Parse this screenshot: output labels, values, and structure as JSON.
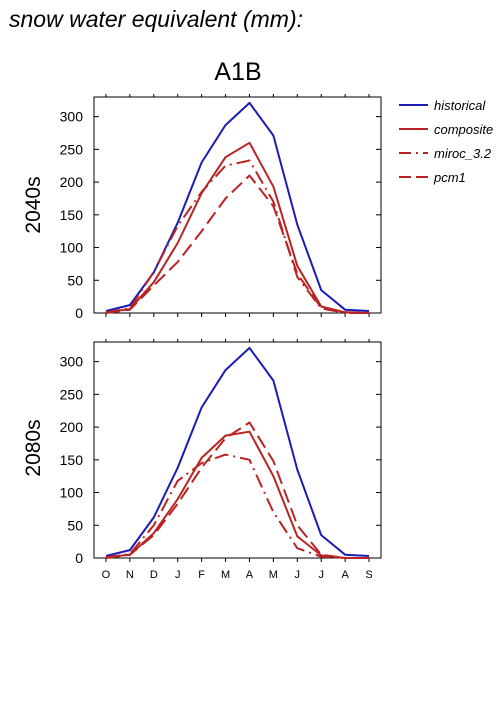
{
  "figure": {
    "title": "snow water equivalent (mm):",
    "scenario": "A1B"
  },
  "colors": {
    "historical": "#1c1cb4",
    "scenario": "#bb2222",
    "axis": "#000000"
  },
  "chart_data": [
    {
      "type": "line",
      "panel_label": "2040s",
      "categories": [
        "O",
        "N",
        "D",
        "J",
        "F",
        "M",
        "A",
        "M",
        "J",
        "J",
        "A",
        "S"
      ],
      "ylim": [
        0,
        330
      ],
      "yticks": [
        0,
        50,
        100,
        150,
        200,
        250,
        300
      ],
      "grid": false,
      "legend": "right",
      "series": [
        {
          "name": "historical",
          "style": "solid",
          "color": "#1c1cb4",
          "values": [
            3,
            12,
            62,
            138,
            230,
            287,
            321,
            271,
            135,
            35,
            5,
            3
          ]
        },
        {
          "name": "composite",
          "style": "solid",
          "color": "#bb2222",
          "values": [
            1,
            6,
            47,
            107,
            183,
            238,
            260,
            193,
            72,
            10,
            1,
            0
          ]
        },
        {
          "name": "miroc_3.2",
          "style": "dashdot",
          "color": "#bb2222",
          "values": [
            1,
            7,
            63,
            133,
            185,
            225,
            233,
            170,
            55,
            7,
            0,
            0
          ]
        },
        {
          "name": "pcm1",
          "style": "dashed",
          "color": "#bb2222",
          "values": [
            0,
            5,
            42,
            78,
            125,
            175,
            210,
            163,
            60,
            8,
            1,
            0
          ]
        }
      ]
    },
    {
      "type": "line",
      "panel_label": "2080s",
      "categories": [
        "O",
        "N",
        "D",
        "J",
        "F",
        "M",
        "A",
        "M",
        "J",
        "J",
        "A",
        "S"
      ],
      "ylim": [
        0,
        330
      ],
      "yticks": [
        0,
        50,
        100,
        150,
        200,
        250,
        300
      ],
      "grid": false,
      "series": [
        {
          "name": "historical",
          "style": "solid",
          "color": "#1c1cb4",
          "values": [
            3,
            12,
            62,
            138,
            230,
            287,
            321,
            271,
            135,
            35,
            5,
            3
          ]
        },
        {
          "name": "composite",
          "style": "solid",
          "color": "#bb2222",
          "values": [
            1,
            5,
            38,
            90,
            153,
            187,
            193,
            125,
            33,
            4,
            0,
            0
          ]
        },
        {
          "name": "miroc_3.2",
          "style": "dashdot",
          "color": "#bb2222",
          "values": [
            1,
            6,
            50,
            118,
            145,
            158,
            150,
            70,
            15,
            2,
            0,
            0
          ]
        },
        {
          "name": "pcm1",
          "style": "dashed",
          "color": "#bb2222",
          "values": [
            0,
            5,
            35,
            83,
            138,
            183,
            207,
            148,
            50,
            5,
            0,
            0
          ]
        }
      ]
    }
  ]
}
